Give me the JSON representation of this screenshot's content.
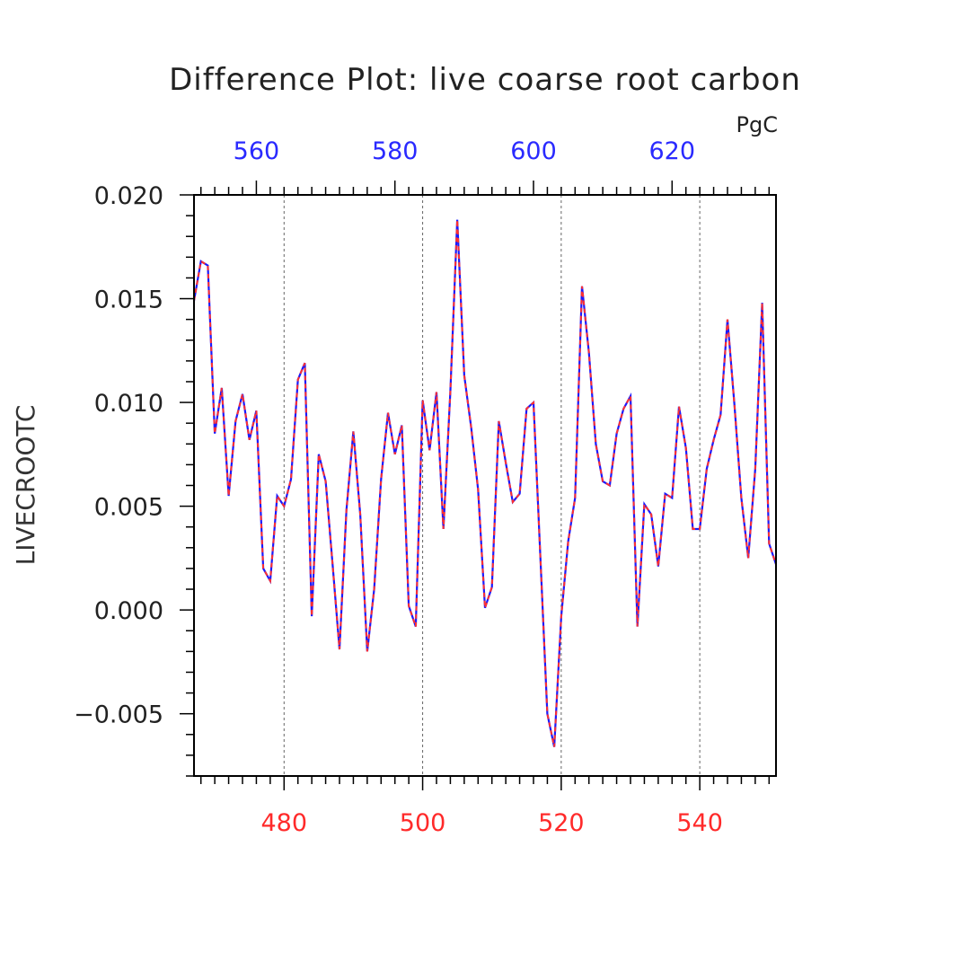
{
  "chart_data": {
    "type": "line",
    "title": "Difference Plot: live coarse root carbon",
    "units": "PgC",
    "ylabel": "LIVECROOTC",
    "xlim": [
      467,
      551
    ],
    "ylim": [
      -0.008,
      0.02
    ],
    "top_xlim": [
      551,
      635
    ],
    "bottom_xticks": [
      "480",
      "500",
      "520",
      "540"
    ],
    "bottom_xtick_values": [
      480,
      500,
      520,
      540
    ],
    "top_xticks": [
      "560",
      "580",
      "600",
      "620"
    ],
    "top_xtick_values": [
      560,
      580,
      600,
      620
    ],
    "yticks": [
      "0.020",
      "0.015",
      "0.010",
      "0.005",
      "0.000",
      "−0.005"
    ],
    "ytick_values": [
      0.02,
      0.015,
      0.01,
      0.005,
      0.0,
      -0.005
    ],
    "grid": "vertical-dashed",
    "colors": {
      "series_a": "#1a1aff",
      "series_b": "#ff3030",
      "bottom_ticks": "#ff2a2a",
      "top_ticks": "#2a2aff"
    },
    "x": [
      467,
      468,
      469,
      470,
      471,
      472,
      473,
      474,
      475,
      476,
      477,
      478,
      479,
      480,
      481,
      482,
      483,
      484,
      485,
      486,
      487,
      488,
      489,
      490,
      491,
      492,
      493,
      494,
      495,
      496,
      497,
      498,
      499,
      500,
      501,
      502,
      503,
      504,
      505,
      506,
      507,
      508,
      509,
      510,
      511,
      512,
      513,
      514,
      515,
      516,
      517,
      518,
      519,
      520,
      521,
      522,
      523,
      524,
      525,
      526,
      527,
      528,
      529,
      530,
      531,
      532,
      533,
      534,
      535,
      536,
      537,
      538,
      539,
      540,
      541,
      542,
      543,
      544,
      545,
      546,
      547,
      548,
      549,
      550,
      551
    ],
    "series": [
      {
        "values": [
          0.0149,
          0.0168,
          0.0166,
          0.0085,
          0.0107,
          0.0055,
          0.0091,
          0.0104,
          0.0082,
          0.0096,
          0.002,
          0.0014,
          0.0055,
          0.005,
          0.0063,
          0.0111,
          0.0119,
          -0.0003,
          0.0075,
          0.0062,
          0.0022,
          -0.0019,
          0.0048,
          0.0086,
          0.0046,
          -0.002,
          0.001,
          0.0063,
          0.0095,
          0.0075,
          0.0089,
          0.0002,
          -0.0008,
          0.0101,
          0.0077,
          0.0105,
          0.0039,
          0.0105,
          0.0188,
          0.0113,
          0.0088,
          0.0058,
          0.0001,
          0.0011,
          0.0091,
          0.0071,
          0.0052,
          0.0056,
          0.0097,
          0.01,
          0.0025,
          -0.005,
          -0.0066,
          -0.0003,
          0.0033,
          0.0054,
          0.0156,
          0.0124,
          0.008,
          0.0062,
          0.006,
          0.0085,
          0.0097,
          0.0103,
          -0.0008,
          0.0051,
          0.0046,
          0.0021,
          0.0056,
          0.0054,
          0.0098,
          0.0078,
          0.0039,
          0.0039,
          0.0068,
          0.0082,
          0.0094,
          0.014,
          0.0099,
          0.0054,
          0.0025,
          0.0068,
          0.0148,
          0.0032,
          0.0022
        ]
      },
      {
        "values": [
          0.0149,
          0.0168,
          0.0166,
          0.0085,
          0.0107,
          0.0055,
          0.0091,
          0.0104,
          0.0082,
          0.0096,
          0.002,
          0.0014,
          0.0055,
          0.005,
          0.0063,
          0.0111,
          0.0119,
          -0.0003,
          0.0075,
          0.0062,
          0.0022,
          -0.0019,
          0.0048,
          0.0086,
          0.0046,
          -0.002,
          0.001,
          0.0063,
          0.0095,
          0.0075,
          0.0089,
          0.0002,
          -0.0008,
          0.0101,
          0.0077,
          0.0105,
          0.0039,
          0.0105,
          0.0188,
          0.0113,
          0.0088,
          0.0058,
          0.0001,
          0.0011,
          0.0091,
          0.0071,
          0.0052,
          0.0056,
          0.0097,
          0.01,
          0.0025,
          -0.005,
          -0.0066,
          -0.0003,
          0.0033,
          0.0054,
          0.0156,
          0.0124,
          0.008,
          0.0062,
          0.006,
          0.0085,
          0.0097,
          0.0103,
          -0.0008,
          0.0051,
          0.0046,
          0.0021,
          0.0056,
          0.0054,
          0.0098,
          0.0078,
          0.0039,
          0.0039,
          0.0068,
          0.0082,
          0.0094,
          0.014,
          0.0099,
          0.0054,
          0.0025,
          0.0068,
          0.0148,
          0.0032,
          0.0022
        ]
      }
    ]
  }
}
